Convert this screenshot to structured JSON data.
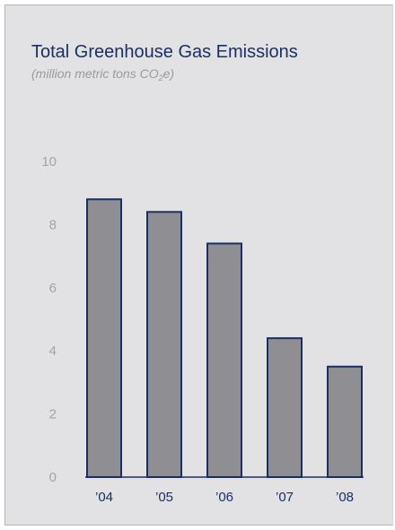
{
  "chart_data": {
    "type": "bar",
    "title": "Total Greenhouse Gas Emissions",
    "subtitle": {
      "prefix": "(million metric tons CO",
      "subscript": "2",
      "suffix": "e)"
    },
    "categories": [
      "’04",
      "’05",
      "’06",
      "’07",
      "’08"
    ],
    "values": [
      8.8,
      8.4,
      7.4,
      4.4,
      3.5
    ],
    "yticks": [
      0,
      2,
      4,
      6,
      8,
      10
    ],
    "ylim": [
      0,
      10
    ],
    "xlabel": "",
    "ylabel": "",
    "grid": false,
    "legend": "none",
    "colors": {
      "bar_fill": "#8f8f93",
      "bar_stroke": "#1b2f63",
      "title": "#1b2f63",
      "panel": "#e2e2e4"
    }
  }
}
